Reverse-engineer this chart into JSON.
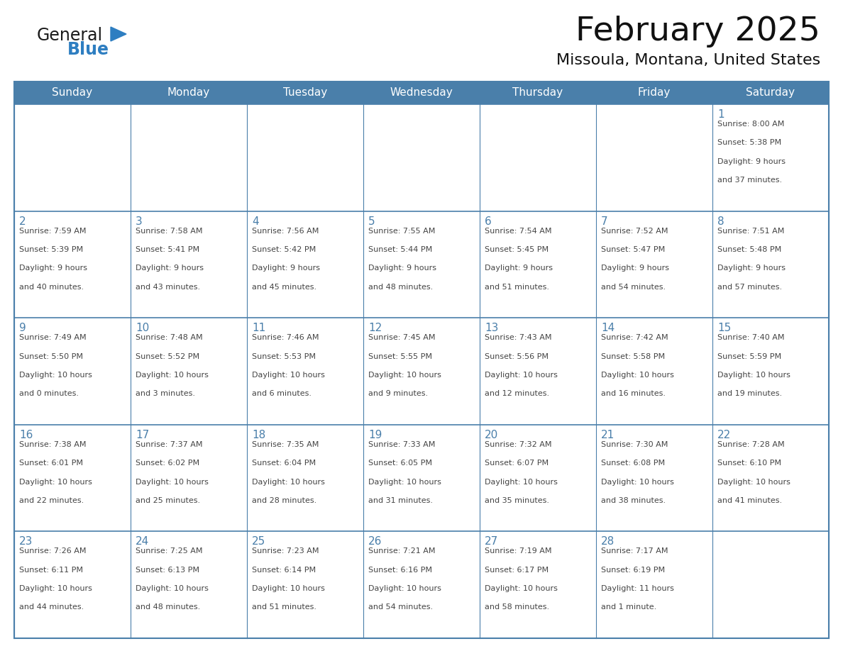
{
  "title": "February 2025",
  "subtitle": "Missoula, Montana, United States",
  "header_bg": "#4a7faa",
  "header_text_color": "#ffffff",
  "cell_bg": "#ffffff",
  "border_color": "#4a7faa",
  "text_color": "#444444",
  "day_number_color": "#4a7faa",
  "days_of_week": [
    "Sunday",
    "Monday",
    "Tuesday",
    "Wednesday",
    "Thursday",
    "Friday",
    "Saturday"
  ],
  "weeks": [
    [
      null,
      null,
      null,
      null,
      null,
      null,
      {
        "day": 1,
        "sunrise": "8:00 AM",
        "sunset": "5:38 PM",
        "daylight": "9 hours and 37 minutes."
      }
    ],
    [
      {
        "day": 2,
        "sunrise": "7:59 AM",
        "sunset": "5:39 PM",
        "daylight": "9 hours and 40 minutes."
      },
      {
        "day": 3,
        "sunrise": "7:58 AM",
        "sunset": "5:41 PM",
        "daylight": "9 hours and 43 minutes."
      },
      {
        "day": 4,
        "sunrise": "7:56 AM",
        "sunset": "5:42 PM",
        "daylight": "9 hours and 45 minutes."
      },
      {
        "day": 5,
        "sunrise": "7:55 AM",
        "sunset": "5:44 PM",
        "daylight": "9 hours and 48 minutes."
      },
      {
        "day": 6,
        "sunrise": "7:54 AM",
        "sunset": "5:45 PM",
        "daylight": "9 hours and 51 minutes."
      },
      {
        "day": 7,
        "sunrise": "7:52 AM",
        "sunset": "5:47 PM",
        "daylight": "9 hours and 54 minutes."
      },
      {
        "day": 8,
        "sunrise": "7:51 AM",
        "sunset": "5:48 PM",
        "daylight": "9 hours and 57 minutes."
      }
    ],
    [
      {
        "day": 9,
        "sunrise": "7:49 AM",
        "sunset": "5:50 PM",
        "daylight": "10 hours and 0 minutes."
      },
      {
        "day": 10,
        "sunrise": "7:48 AM",
        "sunset": "5:52 PM",
        "daylight": "10 hours and 3 minutes."
      },
      {
        "day": 11,
        "sunrise": "7:46 AM",
        "sunset": "5:53 PM",
        "daylight": "10 hours and 6 minutes."
      },
      {
        "day": 12,
        "sunrise": "7:45 AM",
        "sunset": "5:55 PM",
        "daylight": "10 hours and 9 minutes."
      },
      {
        "day": 13,
        "sunrise": "7:43 AM",
        "sunset": "5:56 PM",
        "daylight": "10 hours and 12 minutes."
      },
      {
        "day": 14,
        "sunrise": "7:42 AM",
        "sunset": "5:58 PM",
        "daylight": "10 hours and 16 minutes."
      },
      {
        "day": 15,
        "sunrise": "7:40 AM",
        "sunset": "5:59 PM",
        "daylight": "10 hours and 19 minutes."
      }
    ],
    [
      {
        "day": 16,
        "sunrise": "7:38 AM",
        "sunset": "6:01 PM",
        "daylight": "10 hours and 22 minutes."
      },
      {
        "day": 17,
        "sunrise": "7:37 AM",
        "sunset": "6:02 PM",
        "daylight": "10 hours and 25 minutes."
      },
      {
        "day": 18,
        "sunrise": "7:35 AM",
        "sunset": "6:04 PM",
        "daylight": "10 hours and 28 minutes."
      },
      {
        "day": 19,
        "sunrise": "7:33 AM",
        "sunset": "6:05 PM",
        "daylight": "10 hours and 31 minutes."
      },
      {
        "day": 20,
        "sunrise": "7:32 AM",
        "sunset": "6:07 PM",
        "daylight": "10 hours and 35 minutes."
      },
      {
        "day": 21,
        "sunrise": "7:30 AM",
        "sunset": "6:08 PM",
        "daylight": "10 hours and 38 minutes."
      },
      {
        "day": 22,
        "sunrise": "7:28 AM",
        "sunset": "6:10 PM",
        "daylight": "10 hours and 41 minutes."
      }
    ],
    [
      {
        "day": 23,
        "sunrise": "7:26 AM",
        "sunset": "6:11 PM",
        "daylight": "10 hours and 44 minutes."
      },
      {
        "day": 24,
        "sunrise": "7:25 AM",
        "sunset": "6:13 PM",
        "daylight": "10 hours and 48 minutes."
      },
      {
        "day": 25,
        "sunrise": "7:23 AM",
        "sunset": "6:14 PM",
        "daylight": "10 hours and 51 minutes."
      },
      {
        "day": 26,
        "sunrise": "7:21 AM",
        "sunset": "6:16 PM",
        "daylight": "10 hours and 54 minutes."
      },
      {
        "day": 27,
        "sunrise": "7:19 AM",
        "sunset": "6:17 PM",
        "daylight": "10 hours and 58 minutes."
      },
      {
        "day": 28,
        "sunrise": "7:17 AM",
        "sunset": "6:19 PM",
        "daylight": "11 hours and 1 minute."
      },
      null
    ]
  ],
  "logo_color_general": "#1a1a1a",
  "logo_color_blue": "#2e7ec1",
  "logo_triangle_color": "#2e7ec1",
  "fig_width": 11.88,
  "fig_height": 9.18,
  "dpi": 100
}
